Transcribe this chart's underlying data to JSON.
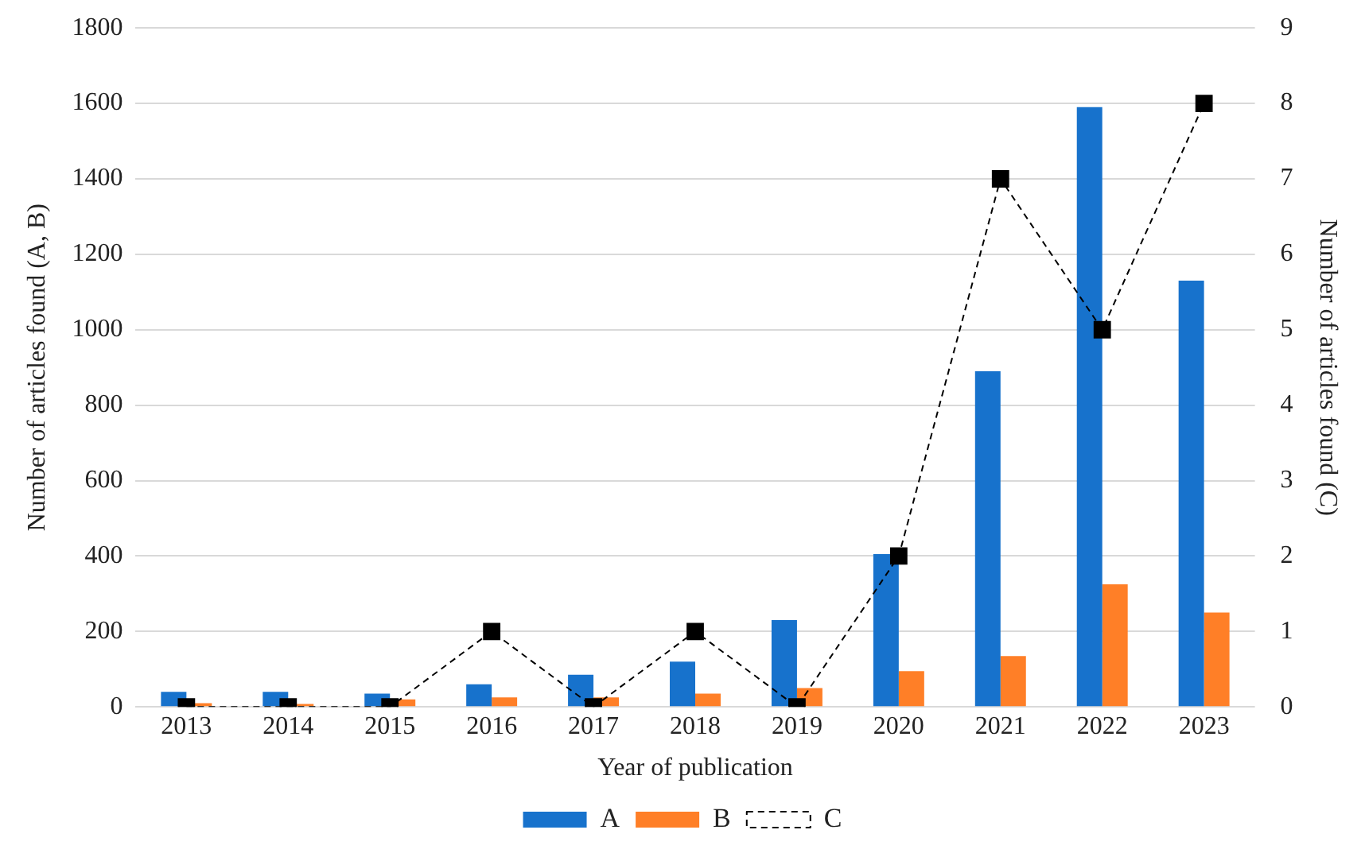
{
  "chart_data": {
    "type": "bar",
    "xlabel": "Year of publication",
    "ylabel": "Number of articles found (A, B)",
    "y2label": "Number of articles found (C)",
    "categories": [
      "2013",
      "2014",
      "2015",
      "2016",
      "2017",
      "2018",
      "2019",
      "2020",
      "2021",
      "2022",
      "2023"
    ],
    "series": [
      {
        "name": "A",
        "color": "#1772cc",
        "values": [
          40,
          40,
          35,
          60,
          85,
          120,
          230,
          405,
          890,
          1590,
          1130
        ]
      },
      {
        "name": "B",
        "color": "#ff7f27",
        "values": [
          10,
          8,
          20,
          25,
          25,
          35,
          50,
          95,
          135,
          325,
          250
        ]
      },
      {
        "name": "C",
        "type": "line",
        "axis": "y2",
        "color": "#000000",
        "marker": "square",
        "line_style": "dashed",
        "values": [
          0,
          0,
          0,
          1,
          0,
          1,
          0,
          2,
          7,
          5,
          8
        ]
      }
    ],
    "ylim": [
      0,
      1800
    ],
    "yticks": [
      0,
      200,
      400,
      600,
      800,
      1000,
      1200,
      1400,
      1600,
      1800
    ],
    "y2lim": [
      0,
      9
    ],
    "y2ticks": [
      0,
      1,
      2,
      3,
      4,
      5,
      6,
      7,
      8,
      9
    ],
    "grid": "y",
    "legend": "bottom"
  }
}
